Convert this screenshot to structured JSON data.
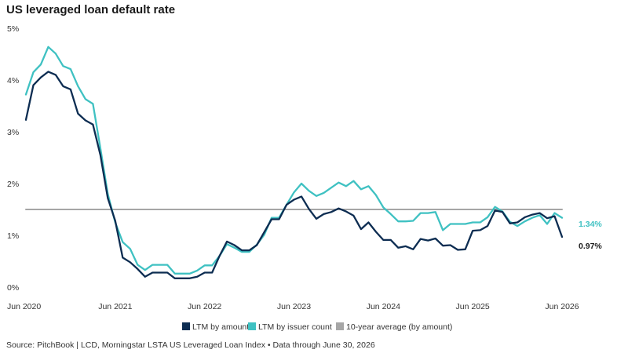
{
  "title": "US leveraged loan default rate",
  "source": "Source: PitchBook | LCD, Morningstar LSTA US Leveraged Loan Index • Data through June 30, 2026",
  "chart_data": {
    "type": "line",
    "title": "US leveraged loan default rate",
    "xlabel": "",
    "ylabel": "",
    "ylim": [
      0,
      5
    ],
    "y_ticks": [
      "0%",
      "1%",
      "2%",
      "3%",
      "4%",
      "5%"
    ],
    "x_ticks": [
      "Jun 2020",
      "Jun 2021",
      "Jun 2022",
      "Jun 2023",
      "Jun 2024",
      "Jun 2025",
      "Jun 2026"
    ],
    "grid": false,
    "legend_position": "bottom-center",
    "x": [
      "2020-06",
      "2020-07",
      "2020-08",
      "2020-09",
      "2020-10",
      "2020-11",
      "2020-12",
      "2021-01",
      "2021-02",
      "2021-03",
      "2021-04",
      "2021-05",
      "2021-06",
      "2021-07",
      "2021-08",
      "2021-09",
      "2021-10",
      "2021-11",
      "2021-12",
      "2022-01",
      "2022-02",
      "2022-03",
      "2022-04",
      "2022-05",
      "2022-06",
      "2022-07",
      "2022-08",
      "2022-09",
      "2022-10",
      "2022-11",
      "2022-12",
      "2023-01",
      "2023-02",
      "2023-03",
      "2023-04",
      "2023-05",
      "2023-06",
      "2023-07",
      "2023-08",
      "2023-09",
      "2023-10",
      "2023-11",
      "2023-12",
      "2024-01",
      "2024-02",
      "2024-03",
      "2024-04",
      "2024-05",
      "2024-06",
      "2024-07",
      "2024-08",
      "2024-09",
      "2024-10",
      "2024-11",
      "2024-12",
      "2025-01",
      "2025-02",
      "2025-03",
      "2025-04",
      "2025-05",
      "2025-06",
      "2025-07",
      "2025-08",
      "2025-09",
      "2025-10",
      "2025-11",
      "2025-12",
      "2026-01",
      "2026-02",
      "2026-03",
      "2026-04",
      "2026-05",
      "2026-06"
    ],
    "series": [
      {
        "name": "LTM by amount",
        "color": "#0d2d52",
        "values": [
          3.23,
          3.9,
          4.05,
          4.16,
          4.1,
          3.88,
          3.82,
          3.35,
          3.22,
          3.14,
          2.55,
          1.72,
          1.28,
          0.57,
          0.48,
          0.35,
          0.2,
          0.28,
          0.28,
          0.28,
          0.17,
          0.17,
          0.17,
          0.2,
          0.28,
          0.28,
          0.6,
          0.88,
          0.81,
          0.71,
          0.71,
          0.81,
          1.06,
          1.31,
          1.31,
          1.59,
          1.69,
          1.75,
          1.51,
          1.32,
          1.41,
          1.45,
          1.52,
          1.46,
          1.38,
          1.12,
          1.25,
          1.07,
          0.91,
          0.91,
          0.76,
          0.79,
          0.73,
          0.93,
          0.9,
          0.94,
          0.8,
          0.81,
          0.72,
          0.73,
          1.09,
          1.1,
          1.18,
          1.48,
          1.45,
          1.23,
          1.25,
          1.35,
          1.4,
          1.43,
          1.33,
          1.37,
          0.97
        ]
      },
      {
        "name": "LTM by issuer count",
        "color": "#3fc1c2",
        "values": [
          3.72,
          4.15,
          4.3,
          4.64,
          4.51,
          4.27,
          4.21,
          3.88,
          3.63,
          3.54,
          2.68,
          1.8,
          1.25,
          0.87,
          0.74,
          0.43,
          0.33,
          0.43,
          0.43,
          0.43,
          0.26,
          0.26,
          0.26,
          0.32,
          0.42,
          0.42,
          0.6,
          0.83,
          0.76,
          0.68,
          0.68,
          0.82,
          1.01,
          1.34,
          1.34,
          1.59,
          1.83,
          2.0,
          1.86,
          1.76,
          1.82,
          1.92,
          2.02,
          1.95,
          2.05,
          1.89,
          1.95,
          1.78,
          1.54,
          1.41,
          1.27,
          1.27,
          1.28,
          1.43,
          1.43,
          1.45,
          1.1,
          1.22,
          1.22,
          1.22,
          1.25,
          1.25,
          1.35,
          1.55,
          1.46,
          1.26,
          1.18,
          1.27,
          1.34,
          1.39,
          1.22,
          1.43,
          1.34
        ]
      },
      {
        "name": "10-year average (by amount)",
        "color": "#a6a6a6",
        "values": [
          1.5,
          1.5,
          1.5,
          1.5,
          1.5,
          1.5,
          1.5,
          1.5,
          1.5,
          1.5,
          1.5,
          1.5,
          1.5,
          1.5,
          1.5,
          1.5,
          1.5,
          1.5,
          1.5,
          1.5,
          1.5,
          1.5,
          1.5,
          1.5,
          1.5,
          1.5,
          1.5,
          1.5,
          1.5,
          1.5,
          1.5,
          1.5,
          1.5,
          1.5,
          1.5,
          1.5,
          1.5,
          1.5,
          1.5,
          1.5,
          1.5,
          1.5,
          1.5,
          1.5,
          1.5,
          1.5,
          1.5,
          1.5,
          1.5,
          1.5,
          1.5,
          1.5,
          1.5,
          1.5,
          1.5,
          1.5,
          1.5,
          1.5,
          1.5,
          1.5,
          1.5,
          1.5,
          1.5,
          1.5,
          1.5,
          1.5,
          1.5,
          1.5,
          1.5,
          1.5,
          1.5,
          1.5,
          1.5
        ]
      }
    ],
    "end_labels": [
      {
        "text": "1.34%",
        "value": 1.34,
        "color": "#3fc1c2"
      },
      {
        "text": "0.97%",
        "value": 0.97,
        "color": "#1a1a1a"
      }
    ]
  }
}
